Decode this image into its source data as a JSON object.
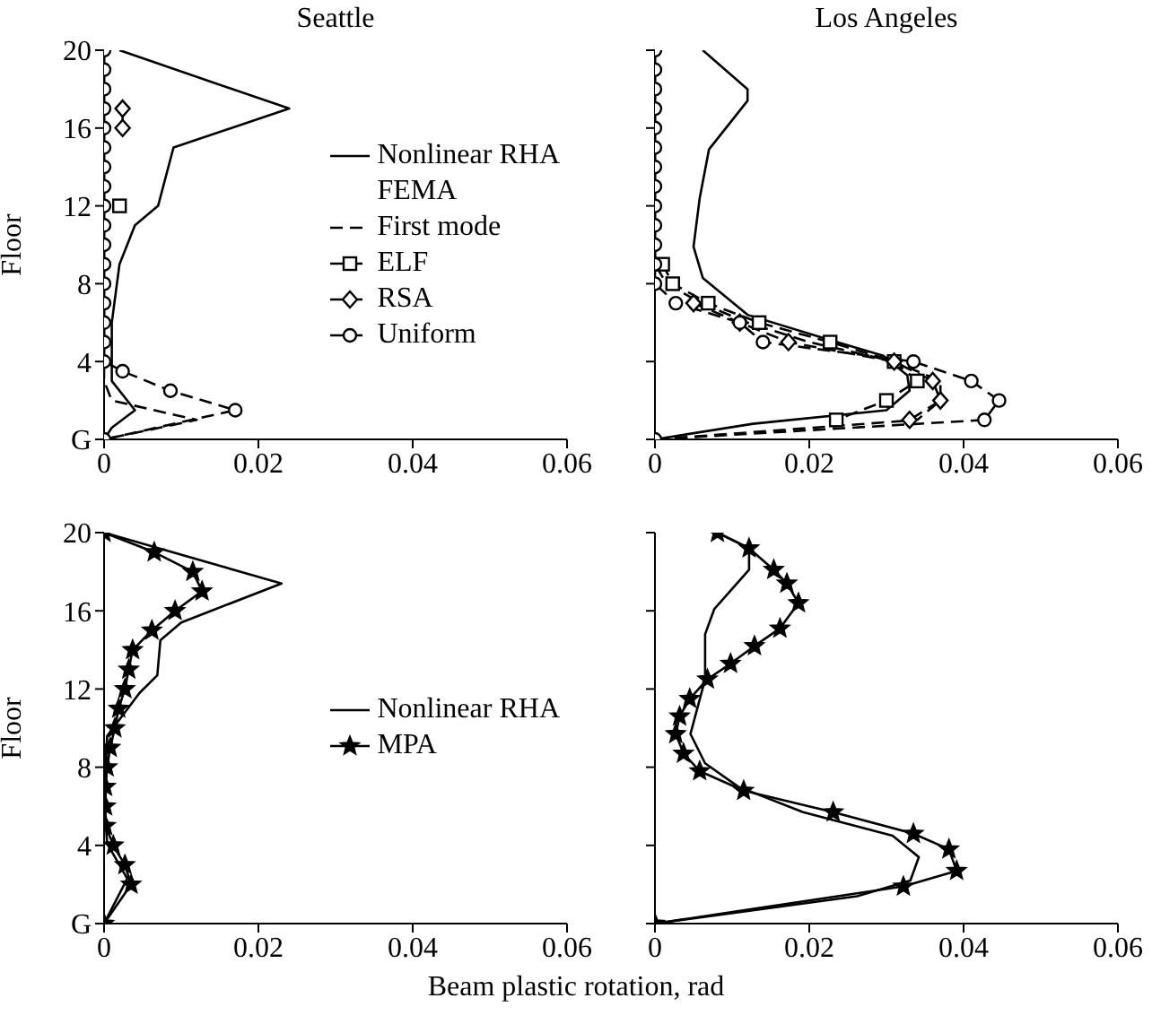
{
  "chart_data": [
    {
      "type": "line",
      "title": "Seattle",
      "ylabel": "Floor",
      "xlim": [
        0,
        0.06
      ],
      "xticks": [
        0,
        0.02,
        0.04,
        0.06
      ],
      "ylim": [
        0,
        20
      ],
      "yticks": [
        {
          "value": 0,
          "label": "G"
        },
        4,
        8,
        12,
        16,
        20
      ],
      "legend": "right",
      "annotations": [
        "FEMA"
      ],
      "series": [
        {
          "name": "Nonlinear RHA",
          "color": "#000000",
          "line_style": "solid",
          "marker": "none",
          "x": [
            0.002,
            0.024,
            0.009,
            0.007,
            0.004,
            0.002,
            0.001,
            0.001,
            0.004,
            0.001,
            0
          ],
          "values": [
            20,
            17,
            15,
            12,
            11,
            9,
            6,
            3,
            1.5,
            0.6,
            0
          ]
        },
        {
          "name": "First mode",
          "color": "#000000",
          "line_style": "dashed",
          "marker": "none",
          "x": [
            0,
            0,
            0,
            0.001,
            0.012,
            0
          ],
          "values": [
            20,
            8,
            3,
            2,
            1,
            0
          ]
        },
        {
          "name": "ELF",
          "color": "#000000",
          "line_style": "dashed",
          "marker": "square",
          "x": [
            0.002
          ],
          "values": [
            12
          ]
        },
        {
          "name": "RSA",
          "color": "#000000",
          "line_style": "dashed",
          "marker": "diamond",
          "x": [
            0.0024,
            0.0024
          ],
          "values": [
            17,
            16
          ]
        },
        {
          "name": "Uniform",
          "color": "#000000",
          "line_style": "dashed",
          "marker": "circle",
          "x": [
            0,
            0,
            0,
            0,
            0,
            0,
            0,
            0,
            0,
            0,
            0,
            0,
            0,
            0,
            0,
            0,
            0,
            0.0024,
            0.0086,
            0.017,
            0
          ],
          "values": [
            20,
            19,
            18,
            17,
            16,
            15,
            14,
            13,
            12,
            11,
            10,
            9,
            8,
            7,
            6,
            5,
            4,
            3.5,
            2.5,
            1.5,
            0
          ]
        }
      ]
    },
    {
      "type": "line",
      "title": "Los Angeles",
      "xlim": [
        0,
        0.06
      ],
      "xticks": [
        0,
        0.02,
        0.04,
        0.06
      ],
      "ylim": [
        0,
        20
      ],
      "yticks": [
        0,
        4,
        8,
        12,
        16,
        20
      ],
      "tick_labels": "x",
      "series": [
        {
          "color": "#000000",
          "line_style": "solid",
          "marker": "none",
          "x": [
            0.0062,
            0.012,
            0.012,
            0.007,
            0.0058,
            0.005,
            0.0062,
            0.012,
            0.0227,
            0.0296,
            0.0327,
            0.033,
            0.03,
            0.0127,
            0
          ],
          "values": [
            20,
            18,
            17.4,
            14.9,
            12.4,
            9.9,
            8.3,
            6.4,
            5.1,
            4.3,
            3.3,
            2.5,
            1.5,
            0.8,
            0
          ]
        },
        {
          "color": "#000000",
          "line_style": "dashed",
          "marker": "none",
          "x": [
            0,
            0,
            0.0015,
            0.006,
            0.012,
            0.02,
            0.031,
            0.037,
            0.037,
            0.034,
            0
          ],
          "values": [
            20,
            9,
            8,
            7,
            6,
            5,
            4,
            3,
            2,
            1,
            0
          ]
        },
        {
          "color": "#000000",
          "line_style": "dashed",
          "marker": "square",
          "x": [
            0.001,
            0.0023,
            0.0069,
            0.0135,
            0.0227,
            0.031,
            0.034,
            0.03,
            0.0235
          ],
          "values": [
            9,
            8,
            7,
            6,
            5,
            4,
            3,
            2,
            1
          ]
        },
        {
          "color": "#000000",
          "line_style": "dashed",
          "marker": "diamond",
          "x": [
            0.005,
            0.011,
            0.0173,
            0.031,
            0.036,
            0.037,
            0.033
          ],
          "values": [
            7,
            6,
            5,
            4,
            3,
            2,
            1
          ]
        },
        {
          "color": "#000000",
          "line_style": "dashed",
          "marker": "circle",
          "x": [
            0,
            0,
            0,
            0,
            0,
            0,
            0,
            0,
            0,
            0,
            0,
            0,
            0,
            0.0027,
            0.011,
            0.014,
            0.0335,
            0.041,
            0.0446,
            0.0427,
            0
          ],
          "values": [
            20,
            19,
            18,
            17,
            16,
            15,
            14,
            13,
            12,
            11,
            10,
            9,
            8,
            7,
            6,
            5,
            4,
            3,
            2,
            1,
            0
          ]
        }
      ]
    },
    {
      "type": "line",
      "ylabel": "Floor",
      "xlabel": "Beam plastic rotation, rad",
      "xlim": [
        0,
        0.06
      ],
      "xticks": [
        0,
        0.02,
        0.04,
        0.06
      ],
      "ylim": [
        0,
        20
      ],
      "yticks": [
        {
          "value": 0,
          "label": "G"
        },
        4,
        8,
        12,
        16,
        20
      ],
      "legend": "right",
      "series": [
        {
          "name": "Nonlinear RHA",
          "color": "#000000",
          "line_style": "solid",
          "marker": "none",
          "x": [
            0,
            0.023,
            0.01,
            0.0073,
            0.0069,
            0.0046,
            0.0004,
            0,
            0.0004,
            0.003,
            0
          ],
          "values": [
            20,
            17.4,
            15.4,
            14.5,
            12.7,
            11.8,
            9.6,
            6.3,
            4.1,
            2.3,
            0
          ]
        },
        {
          "name": "MPA",
          "color": "#000000",
          "line_style": "solid",
          "marker": "star",
          "x": [
            0,
            0.0065,
            0.0115,
            0.0127,
            0.0092,
            0.0062,
            0.0037,
            0.0032,
            0.0027,
            0.0019,
            0.0014,
            0.0008,
            0.0004,
            0.0002,
            0.0002,
            0.0002,
            0.0012,
            0.0027,
            0.0035,
            0
          ],
          "values": [
            20,
            19,
            18,
            17,
            16,
            15,
            14,
            13,
            12,
            11,
            10,
            9,
            8,
            7,
            6,
            5,
            4,
            3,
            2,
            0
          ]
        }
      ]
    },
    {
      "type": "line",
      "xlim": [
        0,
        0.06
      ],
      "xticks": [
        0,
        0.02,
        0.04,
        0.06
      ],
      "ylim": [
        0,
        20
      ],
      "yticks": [
        0,
        4,
        8,
        12,
        16,
        20
      ],
      "tick_labels": "x",
      "series": [
        {
          "color": "#000000",
          "line_style": "solid",
          "marker": "none",
          "x": [
            0.0081,
            0.0122,
            0.0122,
            0.0077,
            0.0065,
            0.0065,
            0.0046,
            0.0065,
            0.0108,
            0.0192,
            0.0308,
            0.0342,
            0.0331,
            0.0262,
            0
          ],
          "values": [
            20,
            19.2,
            18.1,
            16.1,
            14.8,
            12.5,
            9.7,
            8.2,
            7,
            5.7,
            4.5,
            3.4,
            2.2,
            1.4,
            0
          ]
        },
        {
          "color": "#000000",
          "line_style": "solid",
          "marker": "star",
          "x": [
            0.0081,
            0.0122,
            0.0154,
            0.0171,
            0.0186,
            0.0162,
            0.0129,
            0.0098,
            0.0068,
            0.0045,
            0.0032,
            0.0027,
            0.0037,
            0.0058,
            0.0115,
            0.0231,
            0.0335,
            0.0381,
            0.0391,
            0.0322,
            0
          ],
          "values": [
            20,
            19.2,
            18.1,
            17.4,
            16.4,
            15.1,
            14.2,
            13.3,
            12.5,
            11.5,
            10.6,
            9.7,
            8.7,
            7.8,
            6.8,
            5.7,
            4.6,
            3.8,
            2.7,
            1.9,
            0
          ]
        }
      ]
    }
  ]
}
